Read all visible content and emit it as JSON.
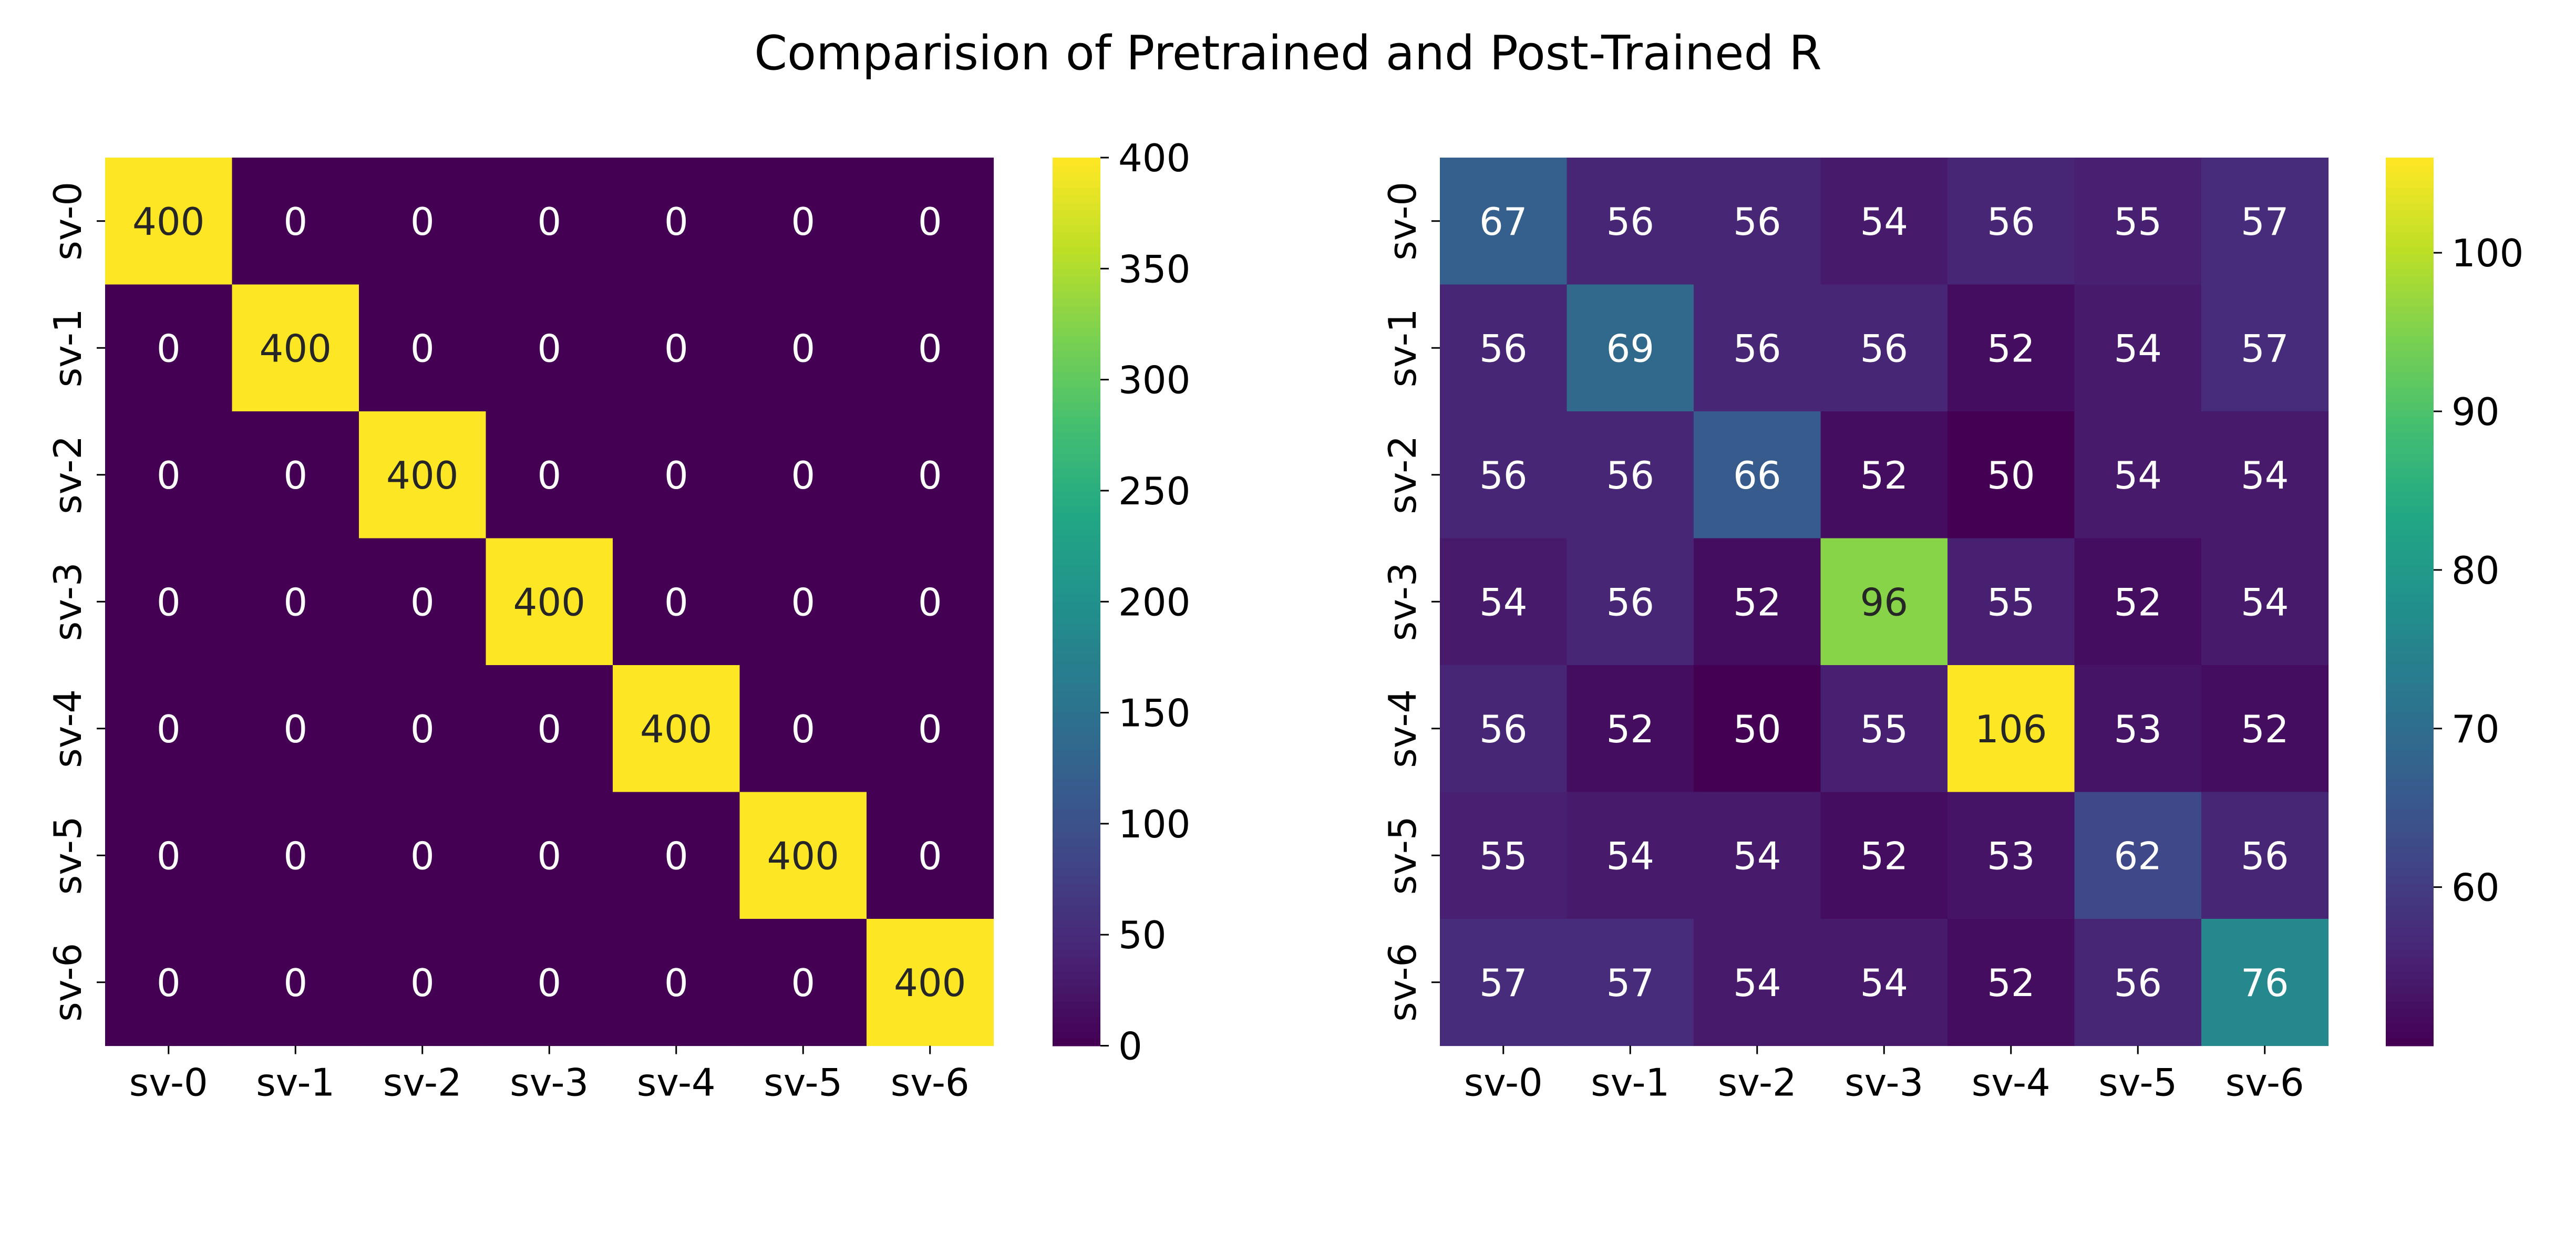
{
  "title": "Comparision of Pretrained and Post-Trained R",
  "chart_data": [
    {
      "type": "heatmap",
      "title": "",
      "x_categories": [
        "sv-0",
        "sv-1",
        "sv-2",
        "sv-3",
        "sv-4",
        "sv-5",
        "sv-6"
      ],
      "y_categories": [
        "sv-0",
        "sv-1",
        "sv-2",
        "sv-3",
        "sv-4",
        "sv-5",
        "sv-6"
      ],
      "values": [
        [
          400,
          0,
          0,
          0,
          0,
          0,
          0
        ],
        [
          0,
          400,
          0,
          0,
          0,
          0,
          0
        ],
        [
          0,
          0,
          400,
          0,
          0,
          0,
          0
        ],
        [
          0,
          0,
          0,
          400,
          0,
          0,
          0
        ],
        [
          0,
          0,
          0,
          0,
          400,
          0,
          0
        ],
        [
          0,
          0,
          0,
          0,
          0,
          400,
          0
        ],
        [
          0,
          0,
          0,
          0,
          0,
          0,
          400
        ]
      ],
      "colormap": "viridis",
      "color_range": [
        0,
        400
      ],
      "colorbar_ticks": [
        0,
        50,
        100,
        150,
        200,
        250,
        300,
        350,
        400
      ]
    },
    {
      "type": "heatmap",
      "title": "",
      "x_categories": [
        "sv-0",
        "sv-1",
        "sv-2",
        "sv-3",
        "sv-4",
        "sv-5",
        "sv-6"
      ],
      "y_categories": [
        "sv-0",
        "sv-1",
        "sv-2",
        "sv-3",
        "sv-4",
        "sv-5",
        "sv-6"
      ],
      "values": [
        [
          67,
          56,
          56,
          54,
          56,
          55,
          57
        ],
        [
          56,
          69,
          56,
          56,
          52,
          54,
          57
        ],
        [
          56,
          56,
          66,
          52,
          50,
          54,
          54
        ],
        [
          54,
          56,
          52,
          96,
          55,
          52,
          54
        ],
        [
          56,
          52,
          50,
          55,
          106,
          53,
          52
        ],
        [
          55,
          54,
          54,
          52,
          53,
          62,
          56
        ],
        [
          57,
          57,
          54,
          54,
          52,
          56,
          76
        ]
      ],
      "colormap": "viridis",
      "color_range": [
        50,
        106
      ],
      "colorbar_ticks": [
        60,
        70,
        80,
        90,
        100
      ]
    }
  ]
}
